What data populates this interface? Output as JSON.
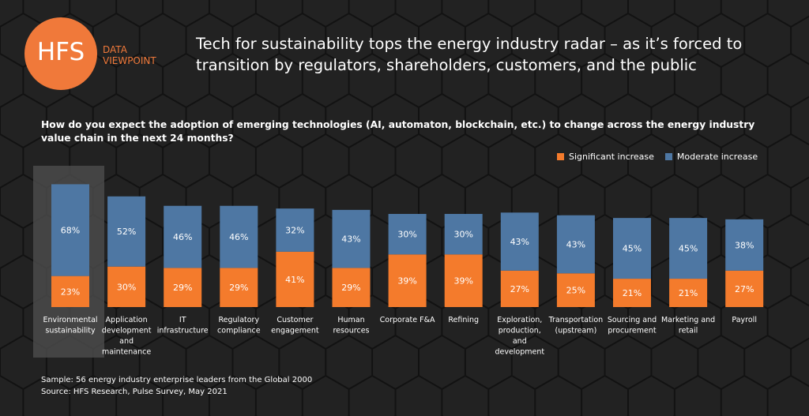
{
  "logo": {
    "text": "HFS",
    "sub1": "DATA",
    "sub2": "VIEWPOINT"
  },
  "title": "Tech for sustainability tops the energy industry radar – as it’s forced to transition by regulators, shareholders, customers, and the public",
  "question": "How do you expect the adoption of emerging technologies (AI, automaton, blockchain, etc.) to change across the energy industry value chain in the next 24 months?",
  "notes": {
    "sample": "Sample: 56 energy industry enterprise leaders from the Global 2000",
    "source": "Source: HFS Research, Pulse Survey, May 2021"
  },
  "chart_data": {
    "type": "bar",
    "stacked": true,
    "categories": [
      [
        "Environmental",
        "sustainability"
      ],
      [
        "Application",
        "development",
        "and",
        "maintenance"
      ],
      [
        "IT",
        "infrastructure"
      ],
      [
        "Regulatory",
        "compliance"
      ],
      [
        "Customer",
        "engagement"
      ],
      [
        "Human",
        "resources"
      ],
      [
        "Corporate F&A"
      ],
      [
        "Refining"
      ],
      [
        "Exploration,",
        "production,",
        "and",
        "development"
      ],
      [
        "Transportation",
        "(upstream)"
      ],
      [
        "Sourcing and",
        "procurement"
      ],
      [
        "Marketing and",
        "retail"
      ],
      [
        "Payroll"
      ]
    ],
    "series": [
      {
        "name": "Significant increase",
        "color": "#f47b2c",
        "values": [
          23,
          30,
          29,
          29,
          41,
          29,
          39,
          39,
          27,
          25,
          21,
          21,
          27
        ]
      },
      {
        "name": "Moderate increase",
        "color": "#4e77a3",
        "values": [
          68,
          52,
          46,
          46,
          32,
          43,
          30,
          30,
          43,
          43,
          45,
          45,
          38
        ]
      }
    ],
    "highlighted_category": "Environmental sustainability",
    "legend": "top-right",
    "grid": false,
    "value_suffix": "%"
  }
}
